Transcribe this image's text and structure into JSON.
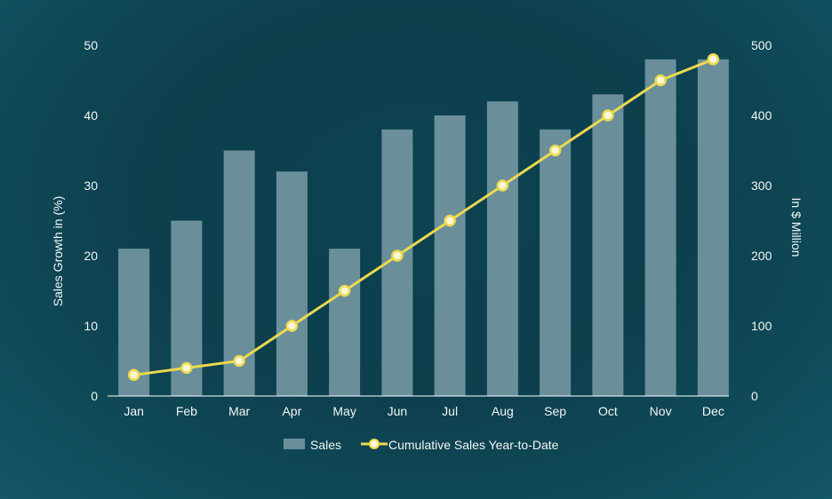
{
  "chart_data": {
    "type": "bar",
    "categories": [
      "Jan",
      "Feb",
      "Mar",
      "Apr",
      "May",
      "Jun",
      "Jul",
      "Aug",
      "Sep",
      "Oct",
      "Nov",
      "Dec"
    ],
    "series": [
      {
        "name": "Sales",
        "type": "bar",
        "axis": "left",
        "values": [
          21,
          25,
          35,
          32,
          21,
          38,
          40,
          42,
          38,
          43,
          48,
          48
        ]
      },
      {
        "name": "Cumulative Sales Year-to-Date",
        "type": "line",
        "axis": "right",
        "values": [
          30,
          40,
          50,
          100,
          150,
          200,
          250,
          300,
          350,
          400,
          450,
          480
        ]
      }
    ],
    "ylabel_left": "Sales Growth in (%)",
    "ylabel_right": "In $ Million",
    "ylim_left": [
      0,
      50
    ],
    "ylim_right": [
      0,
      500
    ],
    "yticks_left": [
      "0",
      "10",
      "20",
      "30",
      "40",
      "50"
    ],
    "yticks_right": [
      "0",
      "100",
      "200",
      "300",
      "400",
      "500"
    ],
    "grid": false,
    "legend": "bottom-center",
    "colors": {
      "bar": "#6a8f9b",
      "line": "#ecd94f",
      "marker_fill": "#fbf6d6",
      "axis": "#ffffff"
    }
  }
}
